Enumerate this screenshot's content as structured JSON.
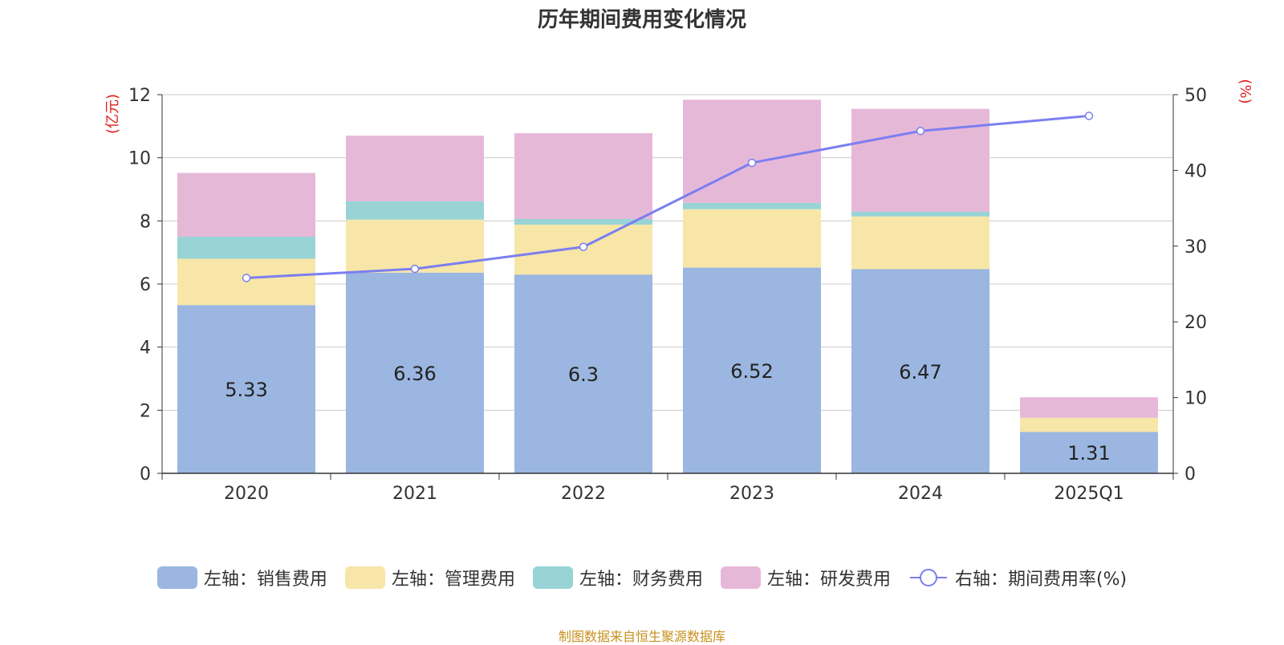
{
  "chart_data": {
    "type": "bar",
    "stacked": true,
    "title": "历年期间费用变化情况",
    "categories": [
      "2020",
      "2021",
      "2022",
      "2023",
      "2024",
      "2025Q1"
    ],
    "left_axis": {
      "unit": "(亿元)",
      "ylim": [
        0,
        12
      ],
      "ticks": [
        0,
        2,
        4,
        6,
        8,
        10,
        12
      ]
    },
    "right_axis": {
      "unit": "(%)",
      "ylim": [
        0,
        50
      ],
      "ticks": [
        0,
        10,
        20,
        30,
        40,
        50
      ]
    },
    "series": [
      {
        "name": "左轴：销售费用",
        "type": "bar",
        "axis": "left",
        "color": "#9bb6e0",
        "values": [
          5.33,
          6.36,
          6.3,
          6.52,
          6.47,
          1.31
        ],
        "labels": [
          "5.33",
          "6.36",
          "6.3",
          "6.52",
          "6.47",
          "1.31"
        ]
      },
      {
        "name": "左轴：管理费用",
        "type": "bar",
        "axis": "left",
        "color": "#f7e6a8",
        "values": [
          1.47,
          1.68,
          1.58,
          1.85,
          1.67,
          0.45
        ]
      },
      {
        "name": "左轴：财务费用",
        "type": "bar",
        "axis": "left",
        "color": "#98d4d5",
        "values": [
          0.7,
          0.58,
          0.18,
          0.2,
          0.15,
          0.0
        ]
      },
      {
        "name": "左轴：研发费用",
        "type": "bar",
        "axis": "left",
        "color": "#e6b8d8",
        "values": [
          2.02,
          2.08,
          2.72,
          3.27,
          3.26,
          0.65
        ]
      },
      {
        "name": "右轴：期间费用率(%)",
        "type": "line",
        "axis": "right",
        "color": "#7b7ef0",
        "values": [
          25.8,
          27.0,
          29.9,
          41.0,
          45.2,
          47.2
        ]
      }
    ],
    "legend_position": "bottom",
    "source": "制图数据来自恒生聚源数据库"
  }
}
